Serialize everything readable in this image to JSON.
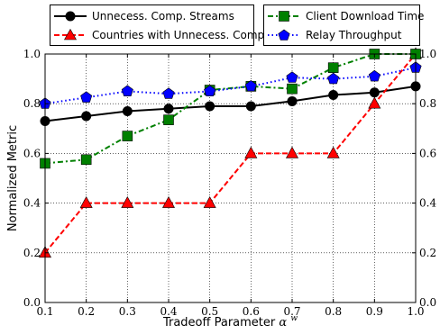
{
  "chart_data": {
    "type": "line",
    "xlabel": "Tradeoff Parameter",
    "xlabel_symbol": "α",
    "xlabel_superscript": "w",
    "ylabel": "Normalized Metric",
    "xlim": [
      0.1,
      1.0
    ],
    "ylim": [
      0.0,
      1.0
    ],
    "grid": true,
    "x_ticks": [
      "0.1",
      "0.2",
      "0.3",
      "0.4",
      "0.5",
      "0.6",
      "0.7",
      "0.8",
      "0.9",
      "1.0"
    ],
    "y_ticks": [
      "0.0",
      "0.2",
      "0.4",
      "0.6",
      "0.8",
      "1.0"
    ],
    "x": [
      0.1,
      0.2,
      0.3,
      0.4,
      0.5,
      0.6,
      0.7,
      0.8,
      0.9,
      1.0
    ],
    "series": [
      {
        "name": "Unnecess. Comp. Streams",
        "color": "#000000",
        "marker": "circle",
        "line": "solid",
        "values": [
          0.73,
          0.75,
          0.77,
          0.78,
          0.79,
          0.79,
          0.81,
          0.835,
          0.845,
          0.87
        ]
      },
      {
        "name": "Countries with Unnecess. Comp.",
        "color": "#ff0000",
        "marker": "triangle",
        "line": "dashed",
        "values": [
          0.2,
          0.4,
          0.4,
          0.4,
          0.4,
          0.6,
          0.6,
          0.6,
          0.8,
          1.0
        ]
      },
      {
        "name": "Client Download Time",
        "color": "#008000",
        "marker": "square",
        "line": "dashdot",
        "values": [
          0.56,
          0.575,
          0.67,
          0.735,
          0.855,
          0.87,
          0.86,
          0.945,
          1.0,
          1.0
        ]
      },
      {
        "name": "Relay Throughput",
        "color": "#0000ff",
        "marker": "pentagon",
        "line": "dotted",
        "values": [
          0.8,
          0.825,
          0.85,
          0.84,
          0.85,
          0.87,
          0.905,
          0.9,
          0.91,
          0.945
        ]
      }
    ],
    "legend": "top, two boxes"
  }
}
